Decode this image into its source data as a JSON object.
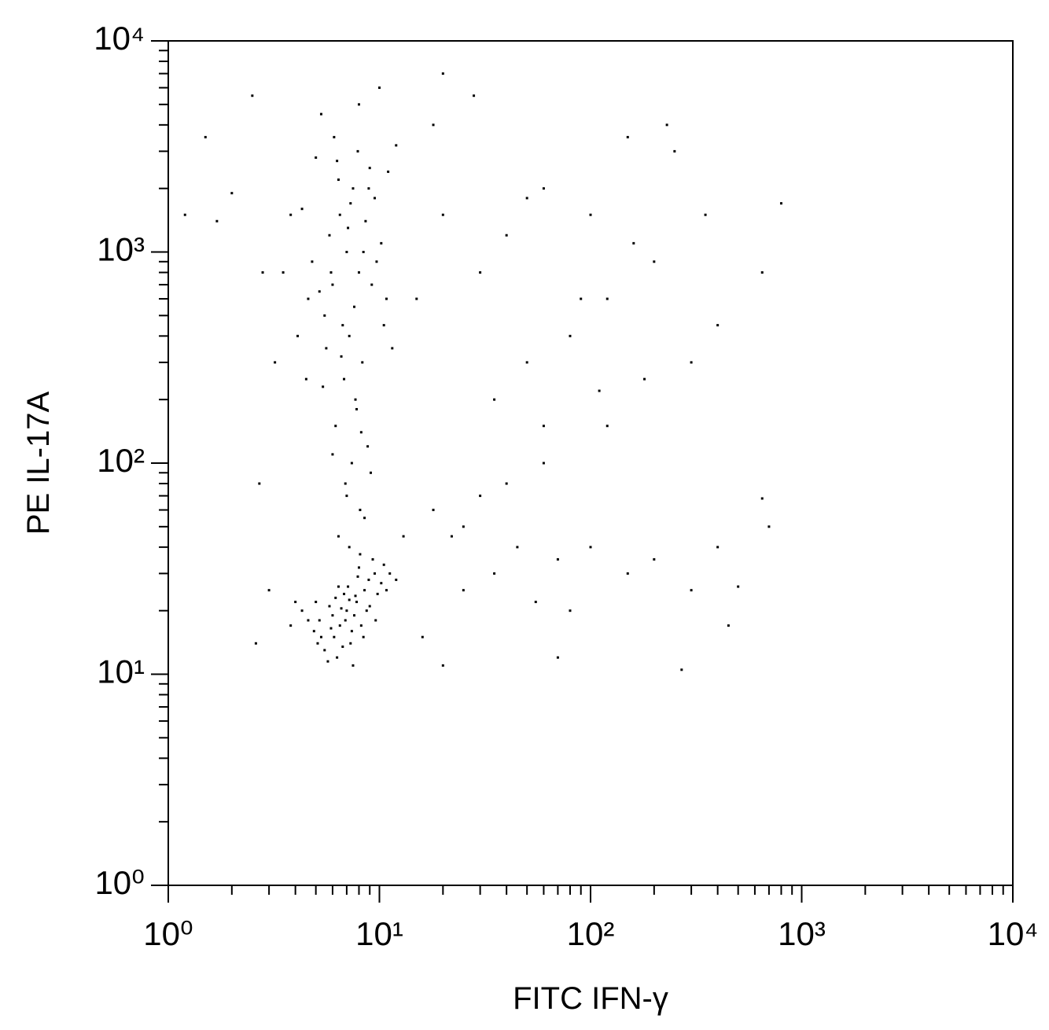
{
  "chart_data": {
    "type": "scatter",
    "xlabel": "FITC IFN-γ",
    "ylabel": "PE IL-17A",
    "xscale": "log",
    "yscale": "log",
    "xlim": [
      1,
      10000
    ],
    "ylim": [
      1,
      10000
    ],
    "xticks": [
      {
        "value": 1,
        "label": "10⁰"
      },
      {
        "value": 10,
        "label": "10¹"
      },
      {
        "value": 100,
        "label": "10²"
      },
      {
        "value": 1000,
        "label": "10³"
      },
      {
        "value": 10000,
        "label": "10⁴"
      }
    ],
    "yticks": [
      {
        "value": 1,
        "label": "10⁰"
      },
      {
        "value": 10,
        "label": "10¹"
      },
      {
        "value": 100,
        "label": "10²"
      },
      {
        "value": 1000,
        "label": "10³"
      },
      {
        "value": 10000,
        "label": "10⁴"
      }
    ],
    "xminorticks": [
      2,
      3,
      4,
      5,
      6,
      7,
      8,
      9,
      20,
      30,
      40,
      50,
      60,
      70,
      80,
      90,
      200,
      300,
      400,
      500,
      600,
      700,
      800,
      900,
      2000,
      3000,
      4000,
      5000,
      6000,
      7000,
      8000,
      9000
    ],
    "yminorticks": [
      2,
      3,
      4,
      5,
      6,
      7,
      8,
      9,
      20,
      30,
      40,
      50,
      60,
      70,
      80,
      90,
      200,
      300,
      400,
      500,
      600,
      700,
      800,
      900,
      2000,
      3000,
      4000,
      5000,
      6000,
      7000,
      8000,
      9000
    ],
    "color": "#000000",
    "x": [
      5.2,
      6.1,
      7.0,
      7.8,
      8.5,
      6.5,
      5.8,
      4.9,
      7.3,
      8.9,
      9.5,
      6.8,
      5.5,
      7.6,
      8.2,
      10.2,
      6.3,
      7.1,
      5.0,
      9.0,
      6.0,
      8.0,
      10.5,
      4.6,
      7.4,
      6.7,
      5.3,
      9.8,
      8.7,
      6.2,
      7.9,
      11.2,
      4.3,
      5.7,
      6.9,
      8.4,
      9.3,
      7.2,
      5.9,
      10.8,
      3.8,
      4.0,
      12,
      7.5,
      6.4,
      8.1,
      5.1,
      9.6,
      7.7,
      6.6,
      7.0,
      8.0,
      6.5,
      7.5,
      9.0,
      6.0,
      5.5,
      7.2,
      8.3,
      6.8,
      7.7,
      6.2,
      8.8,
      7.4,
      6.9,
      8.1,
      5.8,
      9.5,
      10.2,
      4.8,
      5.2,
      6.4,
      7.9,
      8.6,
      6.1,
      7.3,
      9.2,
      5.6,
      4.6,
      10.5,
      6.7,
      7.6,
      8.4,
      5.9,
      9.7,
      6.3,
      7.1,
      8.9,
      4.3,
      11,
      12,
      5.0,
      6.6,
      7.8,
      8.2,
      6.0,
      9.1,
      5.4,
      7.0,
      8.5,
      6.4,
      7.2,
      4.5,
      3.8,
      3.5,
      4.1,
      10.8,
      11.5,
      5.3,
      8.0,
      20,
      30,
      15,
      40,
      60,
      100,
      150,
      200,
      250,
      80,
      50,
      35,
      25,
      30,
      40,
      60,
      22,
      45,
      70,
      100,
      150,
      200,
      300,
      400,
      500,
      700,
      650,
      800,
      400,
      300,
      120,
      180,
      90,
      50,
      18,
      20,
      28,
      10,
      2.5,
      1.5,
      1.2,
      2,
      1.7,
      2.8,
      3.2,
      2.7,
      2.6,
      3,
      20,
      70,
      270,
      450,
      650,
      350,
      230,
      120,
      35,
      55,
      80,
      25,
      16,
      13,
      18,
      60,
      110,
      160
    ],
    "values": [
      18,
      15,
      20,
      22,
      25,
      17,
      21,
      16,
      14,
      28,
      30,
      24,
      13,
      19,
      17,
      27,
      12,
      26,
      22,
      21,
      19,
      32,
      33,
      18,
      16,
      13.5,
      15,
      24,
      20,
      23,
      29,
      30,
      20,
      11.5,
      18,
      15,
      35,
      22.5,
      16.5,
      25,
      17,
      22,
      28,
      11,
      26,
      37,
      14,
      18,
      23.5,
      20.5,
      1000,
      800,
      1500,
      2000,
      2500,
      700,
      500,
      400,
      300,
      250,
      200,
      150,
      120,
      100,
      80,
      60,
      1200,
      1800,
      1100,
      900,
      650,
      2200,
      3000,
      1400,
      3500,
      1700,
      700,
      350,
      600,
      450,
      450,
      550,
      1000,
      800,
      900,
      2700,
      1300,
      2000,
      1600,
      2400,
      3200,
      2800,
      320,
      180,
      140,
      110,
      90,
      230,
      70,
      55,
      45,
      40,
      250,
      1500,
      800,
      400,
      600,
      350,
      4500,
      5000,
      1500,
      800,
      600,
      1200,
      2000,
      1500,
      3500,
      900,
      3000,
      400,
      300,
      200,
      50,
      70,
      80,
      100,
      45,
      40,
      35,
      40,
      30,
      35,
      25,
      40,
      26,
      50,
      800,
      1700,
      450,
      300,
      150,
      250,
      600,
      1800,
      4000,
      7000,
      5500,
      6000,
      5500,
      3500,
      1500,
      1900,
      1400,
      800,
      300,
      80,
      14,
      25,
      11,
      12,
      10.5,
      17,
      68,
      1500,
      4000,
      600,
      30,
      22,
      20,
      25,
      15,
      45,
      60,
      150,
      220,
      1100
    ]
  }
}
